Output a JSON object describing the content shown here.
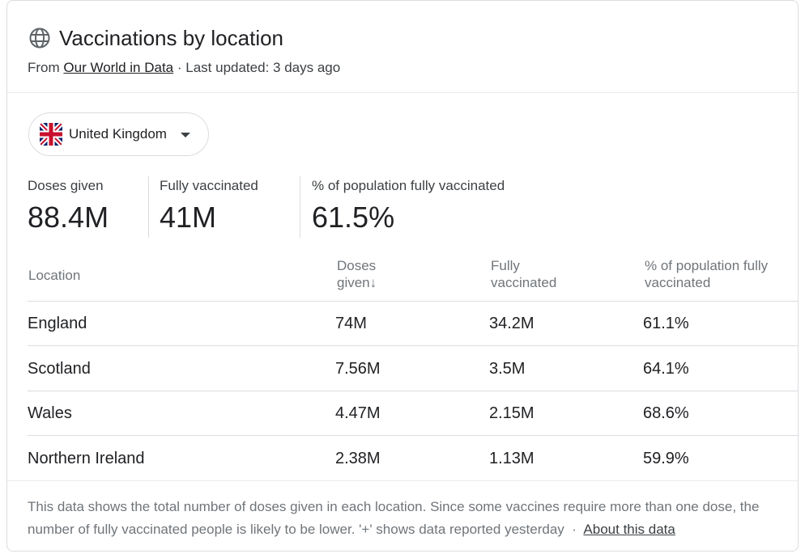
{
  "header": {
    "title": "Vaccinations by location",
    "source_prefix": "From",
    "source_link": "Our World in Data",
    "updated": "· Last updated: 3 days ago",
    "icon": "globe-icon"
  },
  "selector": {
    "label": "United Kingdom",
    "flag_icon": "uk-flag-icon"
  },
  "stats": [
    {
      "label": "Doses given",
      "value": "88.4M"
    },
    {
      "label": "Fully vaccinated",
      "value": "41M"
    },
    {
      "label": "% of population fully vaccinated",
      "value": "61.5%"
    }
  ],
  "table": {
    "headers": [
      "Location",
      "Doses given↓",
      "Fully vaccinated",
      "% of population fully vaccinated"
    ],
    "header_lines": [
      [
        "Location"
      ],
      [
        "Doses",
        "given↓"
      ],
      [
        "Fully",
        "vaccinated"
      ],
      [
        "% of population fully",
        "vaccinated"
      ]
    ],
    "rows": [
      [
        "England",
        "74M",
        "34.2M",
        "61.1%"
      ],
      [
        "Scotland",
        "7.56M",
        "3.5M",
        "64.1%"
      ],
      [
        "Wales",
        "4.47M",
        "2.15M",
        "68.6%"
      ],
      [
        "Northern Ireland",
        "2.38M",
        "1.13M",
        "59.9%"
      ]
    ]
  },
  "footer": {
    "text": "This data shows the total number of doses given in each location. Since some vaccines require more than one dose, the number of fully vaccinated people is likely to be lower. '+' shows data reported yesterday",
    "separator": "·",
    "link": "About this data"
  }
}
